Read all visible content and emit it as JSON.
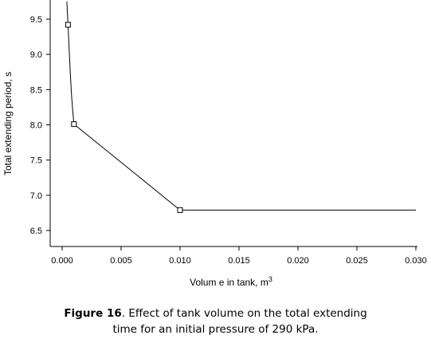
{
  "chart_data": {
    "type": "line",
    "xlabel": "Volum e in tank,  m",
    "xlabel_sup": "3",
    "ylabel": "Total extending period, s",
    "xlim": [
      -0.001,
      0.03
    ],
    "ylim": [
      6.25,
      9.75
    ],
    "xticks": [
      0.0,
      0.005,
      0.01,
      0.015,
      0.02,
      0.025,
      0.03
    ],
    "xtick_labels": [
      "0.000",
      "0.005",
      "0.010",
      "0.015",
      "0.020",
      "0.025",
      "0.030"
    ],
    "yticks": [
      6.5,
      7.0,
      7.5,
      8.0,
      8.5,
      9.0,
      9.5
    ],
    "ytick_labels": [
      "6.5",
      "7.0",
      "7.5",
      "8.0",
      "8.5",
      "9.0",
      "9.5"
    ],
    "grid": false,
    "series": [
      {
        "markers": [
          {
            "x": 0.0005,
            "y": 9.42
          },
          {
            "x": 0.001,
            "y": 8.01
          },
          {
            "x": 0.01,
            "y": 6.79
          }
        ],
        "curve": [
          {
            "x": 0.0004,
            "y": 9.75
          },
          {
            "x": 0.0005,
            "y": 9.42
          },
          {
            "x": 0.0006,
            "y": 9.05
          },
          {
            "x": 0.0007,
            "y": 8.7
          },
          {
            "x": 0.0008,
            "y": 8.42
          },
          {
            "x": 0.0009,
            "y": 8.2
          },
          {
            "x": 0.001,
            "y": 8.01
          },
          {
            "x": 0.01,
            "y": 6.79
          },
          {
            "x": 0.03,
            "y": 6.79
          }
        ]
      }
    ]
  },
  "caption": {
    "label": "Figure 16",
    "text_line1": ". Effect of tank volume on the total extending",
    "text_line2": "time for an initial pressure of 290 kPa."
  }
}
